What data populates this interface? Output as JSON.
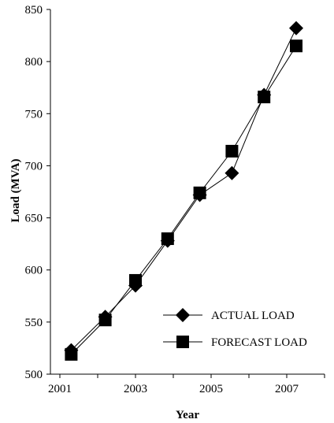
{
  "chart_data": {
    "type": "line",
    "title": "",
    "xlabel": "Year",
    "ylabel": "Load (MVA)",
    "xlim": [
      2001,
      2008
    ],
    "ylim": [
      500,
      850
    ],
    "x_ticks": [
      2001,
      2002,
      2003,
      2004,
      2005,
      2006,
      2007,
      2008
    ],
    "x_tick_labels": [
      "2001",
      "",
      "2003",
      "",
      "2005",
      "",
      "2007",
      ""
    ],
    "y_ticks": [
      500,
      550,
      600,
      650,
      700,
      750,
      800,
      850
    ],
    "y_tick_labels": [
      "500",
      "550",
      "600",
      "650",
      "700",
      "750",
      "800",
      "850"
    ],
    "grid": false,
    "legend_position": "lower-right",
    "series": [
      {
        "name": "ACTUAL LOAD",
        "marker": "diamond",
        "color": "#000000",
        "x": [
          2001.3,
          2002.2,
          2003.0,
          2003.85,
          2004.7,
          2005.55,
          2006.4,
          2007.25
        ],
        "y": [
          523,
          555,
          585,
          628,
          672,
          693,
          768,
          832
        ]
      },
      {
        "name": "FORECAST LOAD",
        "marker": "square",
        "color": "#000000",
        "x": [
          2001.3,
          2002.2,
          2003.0,
          2003.85,
          2004.7,
          2005.55,
          2006.4,
          2007.25
        ],
        "y": [
          519,
          552,
          590,
          630,
          674,
          714,
          766,
          815
        ]
      }
    ]
  }
}
